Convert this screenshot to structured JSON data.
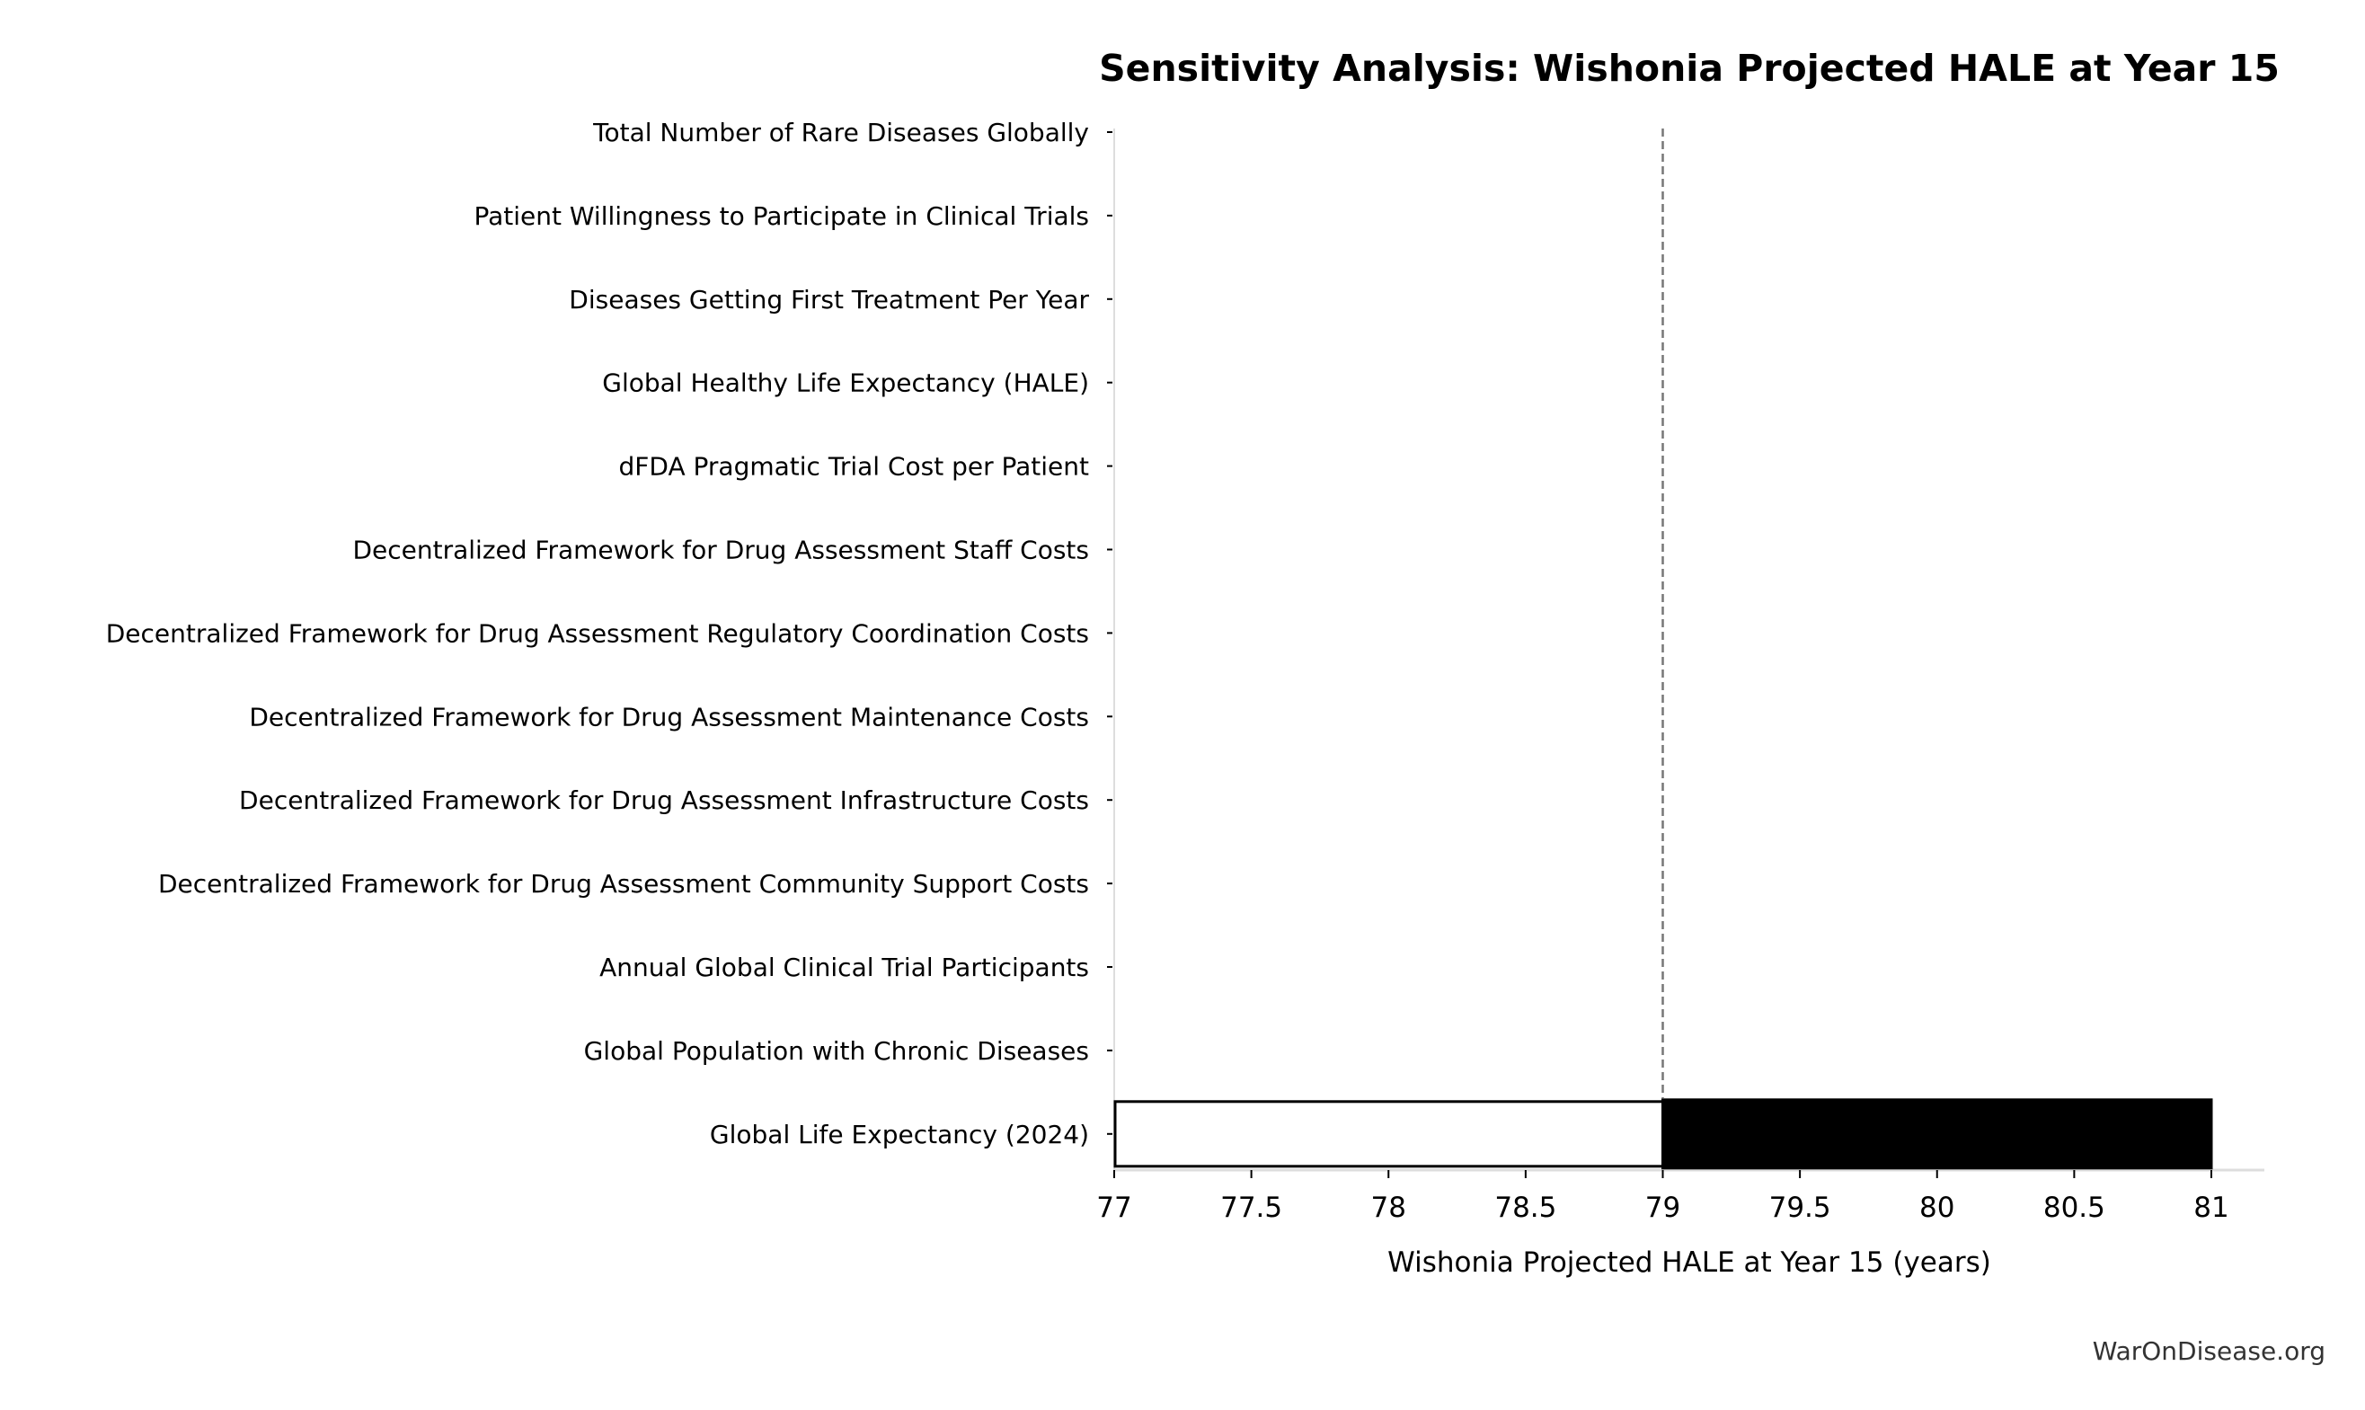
{
  "chart_data": {
    "type": "bar",
    "orientation": "horizontal",
    "subtype": "tornado",
    "title": "Sensitivity Analysis: Wishonia Projected HALE at Year 15",
    "xlabel": "Wishonia Projected HALE at Year 15 (years)",
    "ylabel": "",
    "xlim": [
      77,
      81.2
    ],
    "xticks": [
      "77",
      "77.5",
      "78",
      "78.5",
      "79",
      "79.5",
      "80",
      "80.5",
      "81"
    ],
    "baseline": 79,
    "grid": false,
    "categories": [
      "Total Number of Rare Diseases Globally",
      "Patient Willingness to Participate in Clinical Trials",
      "Diseases Getting First Treatment Per Year",
      "Global Healthy Life Expectancy (HALE)",
      "dFDA Pragmatic Trial Cost per Patient",
      "Decentralized Framework for Drug Assessment Staff Costs",
      "Decentralized Framework for Drug Assessment Regulatory Coordination Costs",
      "Decentralized Framework for Drug Assessment Maintenance Costs",
      "Decentralized Framework for Drug Assessment Infrastructure Costs",
      "Decentralized Framework for Drug Assessment Community Support Costs",
      "Annual Global Clinical Trial Participants",
      "Global Population with Chronic Diseases",
      "Global Life Expectancy (2024)"
    ],
    "low_values": [
      79,
      79,
      79,
      79,
      79,
      79,
      79,
      79,
      79,
      79,
      79,
      79,
      77
    ],
    "high_values": [
      79,
      79,
      79,
      79,
      79,
      79,
      79,
      79,
      79,
      79,
      79,
      79,
      81
    ],
    "colors": {
      "low": "#ffffff",
      "high": "#000000",
      "baseline": "#777777"
    }
  },
  "watermark": "WarOnDisease.org"
}
